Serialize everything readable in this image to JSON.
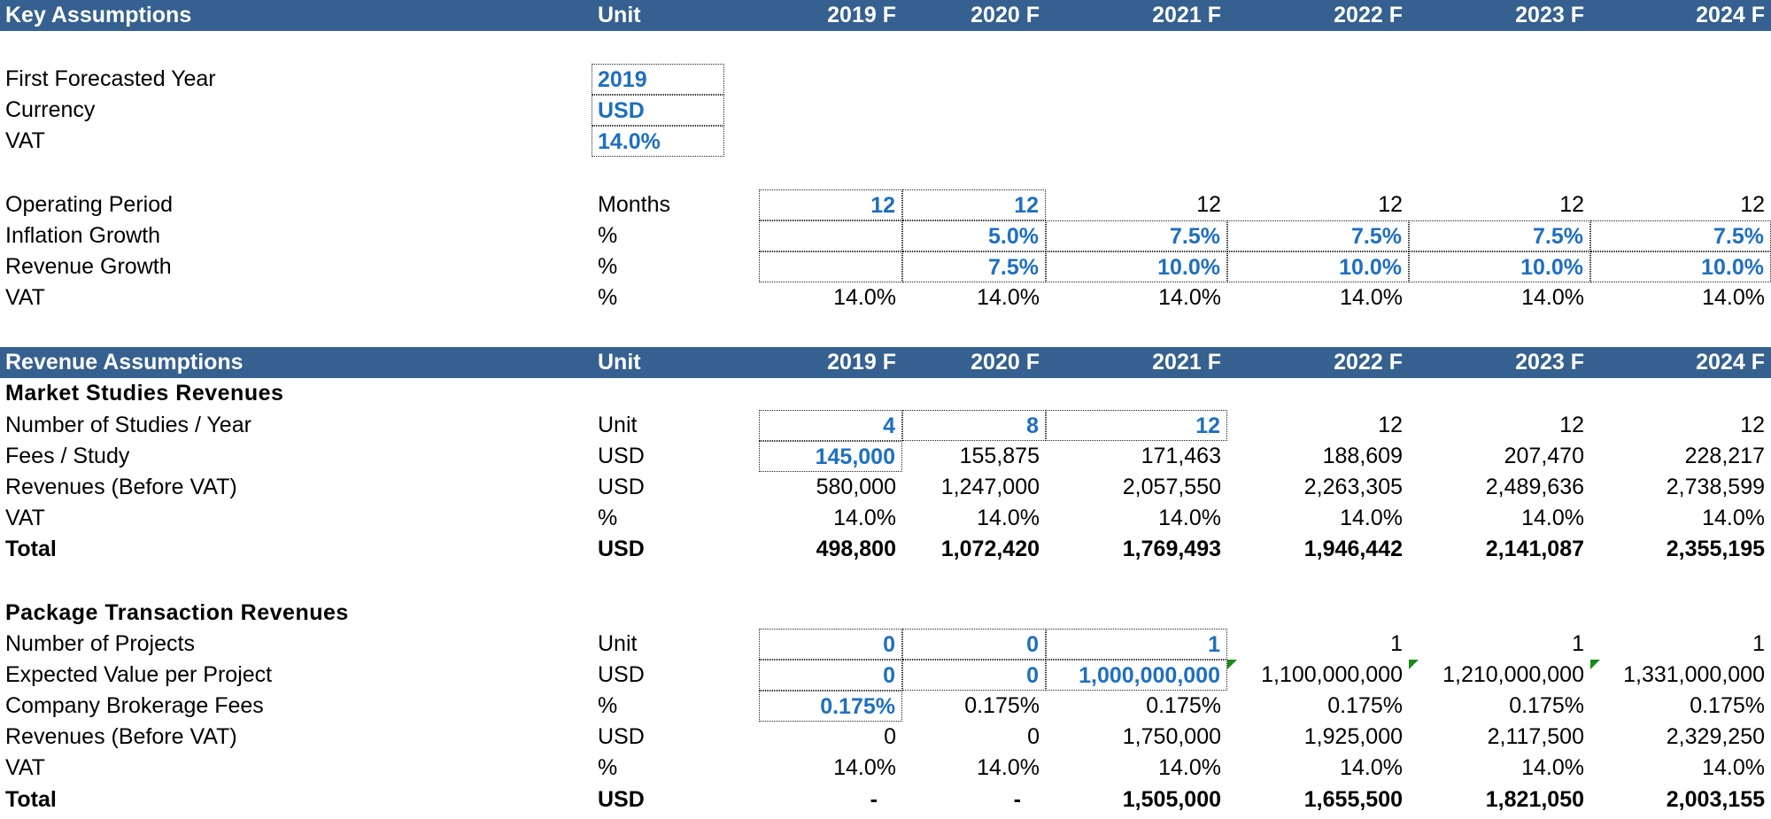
{
  "key_header": {
    "title": "Key Assumptions",
    "unit": "Unit",
    "years": [
      "2019 F",
      "2020 F",
      "2021 F",
      "2022 F",
      "2023 F",
      "2024 F"
    ]
  },
  "general": [
    {
      "label": "First Forecasted Year",
      "value": "2019"
    },
    {
      "label": "Currency",
      "value": "USD"
    },
    {
      "label": "VAT",
      "value": "14.0%"
    }
  ],
  "op_rows": [
    {
      "label": "Operating Period",
      "unit": "Months",
      "values": [
        "12",
        "12",
        "12",
        "12",
        "12",
        "12"
      ]
    },
    {
      "label": "Inflation Growth",
      "unit": "%",
      "values": [
        "",
        "5.0%",
        "7.5%",
        "7.5%",
        "7.5%",
        "7.5%"
      ]
    },
    {
      "label": "Revenue Growth",
      "unit": "%",
      "values": [
        "",
        "7.5%",
        "10.0%",
        "10.0%",
        "10.0%",
        "10.0%"
      ]
    },
    {
      "label": "VAT",
      "unit": "%",
      "values": [
        "14.0%",
        "14.0%",
        "14.0%",
        "14.0%",
        "14.0%",
        "14.0%"
      ]
    }
  ],
  "rev_header": {
    "title": "Revenue Assumptions",
    "unit": "Unit",
    "years": [
      "2019 F",
      "2020 F",
      "2021 F",
      "2022 F",
      "2023 F",
      "2024 F"
    ]
  },
  "market": {
    "title": "Market Studies Revenues",
    "rows": [
      {
        "label": "Number of Studies / Year",
        "unit": "Unit",
        "values": [
          "4",
          "8",
          "12",
          "12",
          "12",
          "12"
        ]
      },
      {
        "label": "Fees / Study",
        "unit": "USD",
        "values": [
          "145,000",
          "155,875",
          "171,463",
          "188,609",
          "207,470",
          "228,217"
        ]
      },
      {
        "label": "Revenues (Before VAT)",
        "unit": "USD",
        "values": [
          "580,000",
          "1,247,000",
          "2,057,550",
          "2,263,305",
          "2,489,636",
          "2,738,599"
        ]
      },
      {
        "label": "VAT",
        "unit": "%",
        "values": [
          "14.0%",
          "14.0%",
          "14.0%",
          "14.0%",
          "14.0%",
          "14.0%"
        ]
      },
      {
        "label": "Total",
        "unit": "USD",
        "values": [
          "498,800",
          "1,072,420",
          "1,769,493",
          "1,946,442",
          "2,141,087",
          "2,355,195"
        ]
      }
    ]
  },
  "package": {
    "title": "Package Transaction Revenues",
    "rows": [
      {
        "label": "Number of Projects",
        "unit": "Unit",
        "values": [
          "0",
          "0",
          "1",
          "1",
          "1",
          "1"
        ]
      },
      {
        "label": "Expected Value per Project",
        "unit": "USD",
        "values": [
          "0",
          "0",
          "1,000,000,000",
          "1,100,000,000",
          "1,210,000,000",
          "1,331,000,000"
        ]
      },
      {
        "label": "Company Brokerage Fees",
        "unit": "%",
        "values": [
          "0.175%",
          "0.175%",
          "0.175%",
          "0.175%",
          "0.175%",
          "0.175%"
        ]
      },
      {
        "label": "Revenues (Before VAT)",
        "unit": "USD",
        "values": [
          "0",
          "0",
          "1,750,000",
          "1,925,000",
          "2,117,500",
          "2,329,250"
        ]
      },
      {
        "label": "VAT",
        "unit": "%",
        "values": [
          "14.0%",
          "14.0%",
          "14.0%",
          "14.0%",
          "14.0%",
          "14.0%"
        ]
      },
      {
        "label": "Total",
        "unit": "USD",
        "values": [
          "-",
          "-",
          "1,505,000",
          "1,655,500",
          "1,821,050",
          "2,003,155"
        ]
      }
    ]
  },
  "colors": {
    "header_bg": "#35608f",
    "input_text": "#1f6fc0",
    "comment_marker": "#1a8a1a"
  }
}
